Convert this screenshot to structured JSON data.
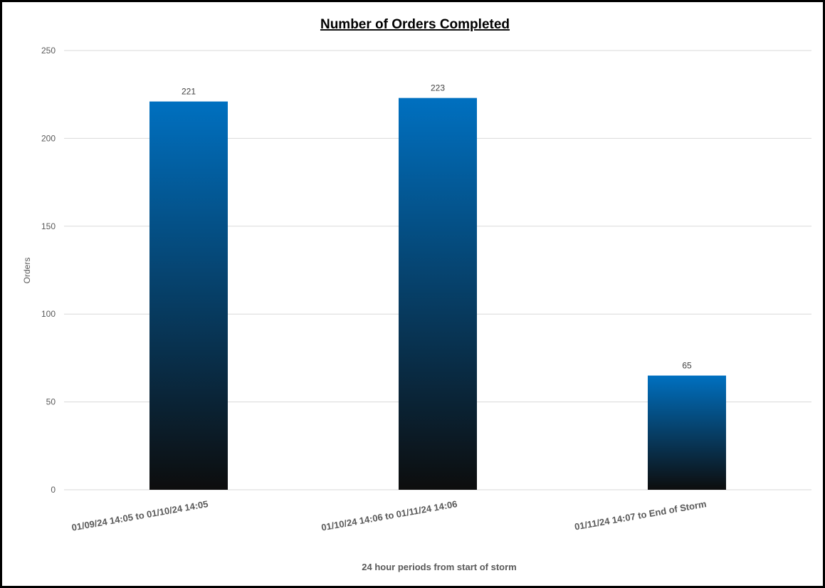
{
  "chart_data": {
    "type": "bar",
    "title": "Number of Orders Completed",
    "xlabel": "24 hour periods from start of storm",
    "ylabel": "Orders",
    "categories": [
      "01/09/24 14:05 to 01/10/24 14:05",
      "01/10/24 14:06 to 01/11/24 14:06",
      "01/11/24 14:07 to End of Storm"
    ],
    "values": [
      221,
      223,
      65
    ],
    "data_labels": [
      "221",
      "223",
      "65"
    ],
    "ylim": [
      0,
      250
    ],
    "yticks": [
      0,
      50,
      100,
      150,
      200,
      250
    ],
    "grid": true,
    "legend": "none",
    "colors": {
      "bar_top": "#0070C0",
      "bar_bottom": "#0D0D0D",
      "grid": "#D9D9D9"
    }
  }
}
